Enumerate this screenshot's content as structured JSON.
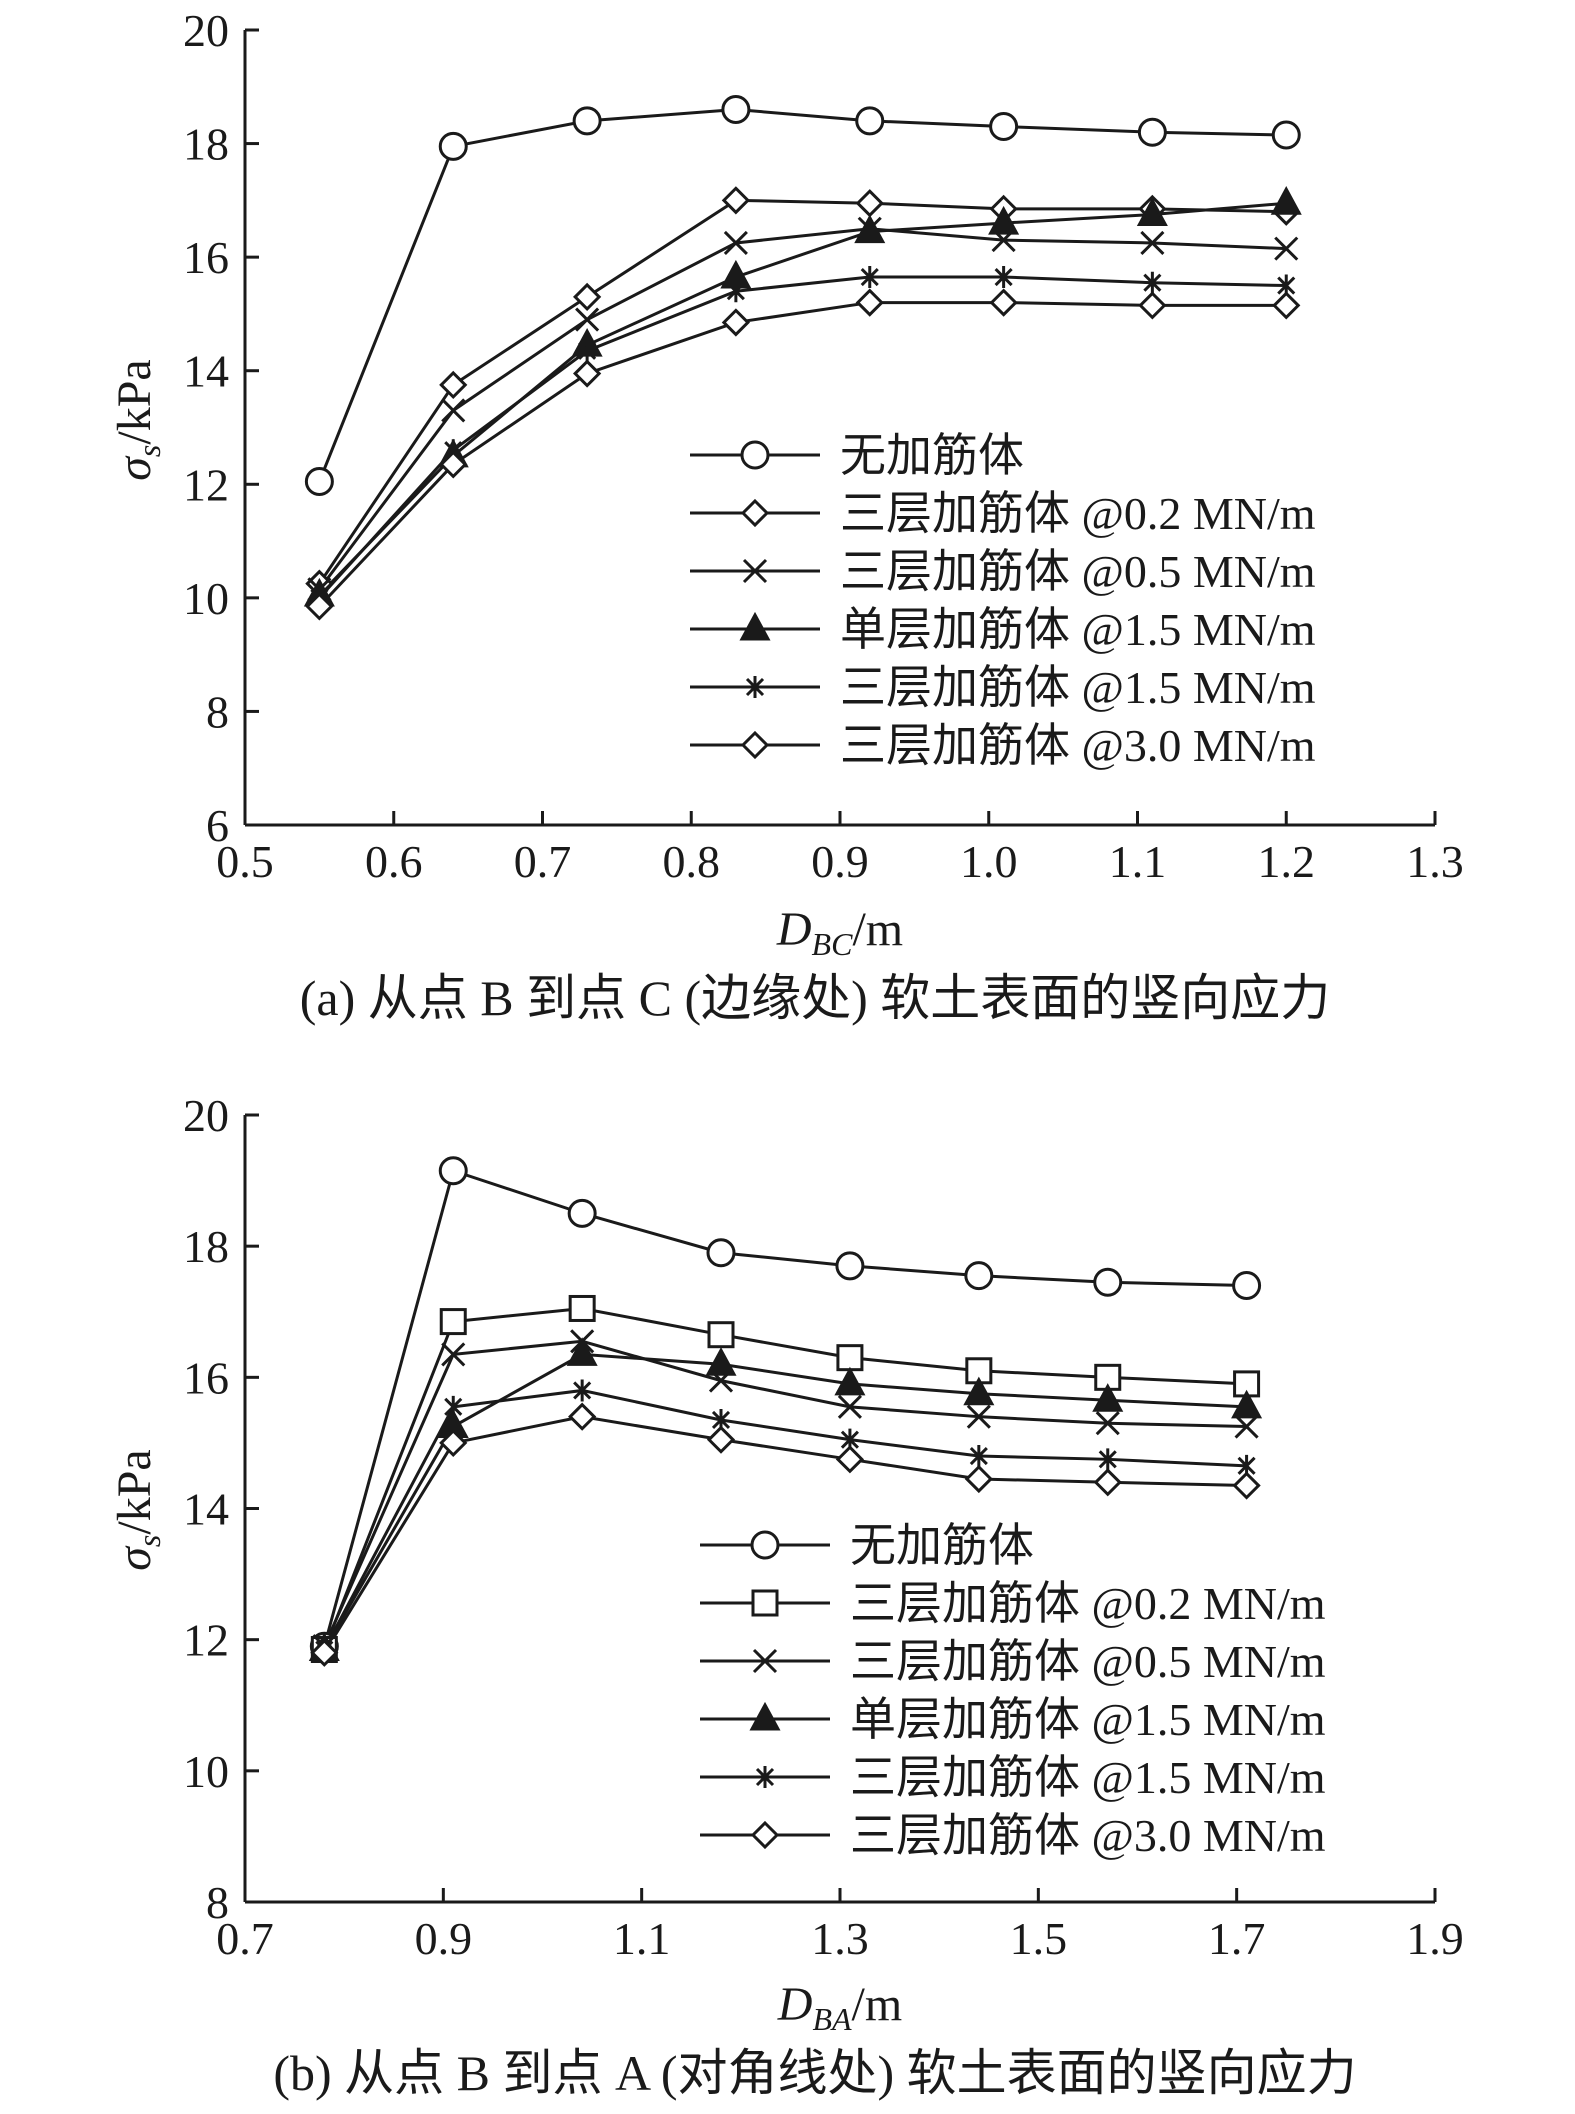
{
  "chart_data": [
    {
      "type": "line",
      "caption": "(a) 从点 B 到点 C (边缘处) 软土表面的竖向应力",
      "xlabel_main": "D",
      "xlabel_sub": "BC",
      "xlabel_unit": "/m",
      "ylabel_main": "σ",
      "ylabel_sub": "s",
      "ylabel_unit": "/kPa",
      "xlim": [
        0.5,
        1.3
      ],
      "ylim": [
        6,
        20
      ],
      "xticks": [
        0.5,
        0.6,
        0.7,
        0.8,
        0.9,
        1.0,
        1.1,
        1.2,
        1.3
      ],
      "xtick_labels": [
        "0.5",
        "0.6",
        "0.7",
        "0.8",
        "0.9",
        "1.0",
        "1.1",
        "1.2",
        "1.3"
      ],
      "yticks": [
        6,
        8,
        10,
        12,
        14,
        16,
        18,
        20
      ],
      "ytick_labels": [
        "6",
        "8",
        "10",
        "12",
        "14",
        "16",
        "18",
        "20"
      ],
      "legend_position": "center-right",
      "x": [
        0.55,
        0.64,
        0.73,
        0.83,
        0.92,
        1.01,
        1.11,
        1.2
      ],
      "series": [
        {
          "name": "无加筋体",
          "marker": "circle",
          "values": [
            12.05,
            17.95,
            18.4,
            18.6,
            18.4,
            18.3,
            18.2,
            18.15
          ]
        },
        {
          "name": "三层加筋体 @0.2 MN/m",
          "marker": "diamond",
          "values": [
            10.25,
            13.75,
            15.3,
            17.0,
            16.95,
            16.85,
            16.85,
            16.8
          ]
        },
        {
          "name": "三层加筋体 @0.5 MN/m",
          "marker": "x",
          "values": [
            10.15,
            13.3,
            14.9,
            16.25,
            16.5,
            16.3,
            16.25,
            16.15
          ]
        },
        {
          "name": "单层加筋体 @1.5 MN/m",
          "marker": "triangle",
          "values": [
            10.05,
            12.5,
            14.45,
            15.65,
            16.45,
            16.6,
            16.75,
            16.95
          ]
        },
        {
          "name": "三层加筋体 @1.5 MN/m",
          "marker": "asterisk",
          "values": [
            10.0,
            12.6,
            14.35,
            15.4,
            15.65,
            15.65,
            15.55,
            15.5
          ]
        },
        {
          "name": "三层加筋体 @3.0 MN/m",
          "marker": "diamond",
          "values": [
            9.85,
            12.35,
            13.95,
            14.85,
            15.2,
            15.2,
            15.15,
            15.15
          ]
        }
      ]
    },
    {
      "type": "line",
      "caption": "(b) 从点 B 到点 A (对角线处) 软土表面的竖向应力",
      "xlabel_main": "D",
      "xlabel_sub": "BA",
      "xlabel_unit": "/m",
      "ylabel_main": "σ",
      "ylabel_sub": "s",
      "ylabel_unit": "/kPa",
      "xlim": [
        0.7,
        1.9
      ],
      "ylim": [
        8,
        20
      ],
      "xticks": [
        0.7,
        0.9,
        1.1,
        1.3,
        1.5,
        1.7,
        1.9
      ],
      "xtick_labels": [
        "0.7",
        "0.9",
        "1.1",
        "1.3",
        "1.5",
        "1.7",
        "1.9"
      ],
      "yticks": [
        8,
        10,
        12,
        14,
        16,
        18,
        20
      ],
      "ytick_labels": [
        "8",
        "10",
        "12",
        "14",
        "16",
        "18",
        "20"
      ],
      "legend_position": "center-right",
      "x": [
        0.78,
        0.91,
        1.04,
        1.18,
        1.31,
        1.44,
        1.57,
        1.71
      ],
      "series": [
        {
          "name": "无加筋体",
          "marker": "circle",
          "values": [
            11.9,
            19.15,
            18.5,
            17.9,
            17.7,
            17.55,
            17.45,
            17.4
          ]
        },
        {
          "name": "三层加筋体 @0.2 MN/m",
          "marker": "square",
          "values": [
            11.85,
            16.85,
            17.05,
            16.65,
            16.3,
            16.1,
            16.0,
            15.9
          ]
        },
        {
          "name": "三层加筋体 @0.5 MN/m",
          "marker": "x",
          "values": [
            11.9,
            16.35,
            16.55,
            15.95,
            15.55,
            15.4,
            15.3,
            15.25
          ]
        },
        {
          "name": "单层加筋体 @1.5 MN/m",
          "marker": "triangle",
          "values": [
            11.85,
            15.25,
            16.35,
            16.2,
            15.9,
            15.75,
            15.65,
            15.55
          ]
        },
        {
          "name": "三层加筋体 @1.5 MN/m",
          "marker": "asterisk",
          "values": [
            11.85,
            15.55,
            15.8,
            15.35,
            15.05,
            14.8,
            14.75,
            14.65
          ]
        },
        {
          "name": "三层加筋体 @3.0 MN/m",
          "marker": "diamond",
          "values": [
            11.8,
            15.0,
            15.4,
            15.05,
            14.75,
            14.45,
            14.4,
            14.35
          ]
        }
      ]
    }
  ]
}
